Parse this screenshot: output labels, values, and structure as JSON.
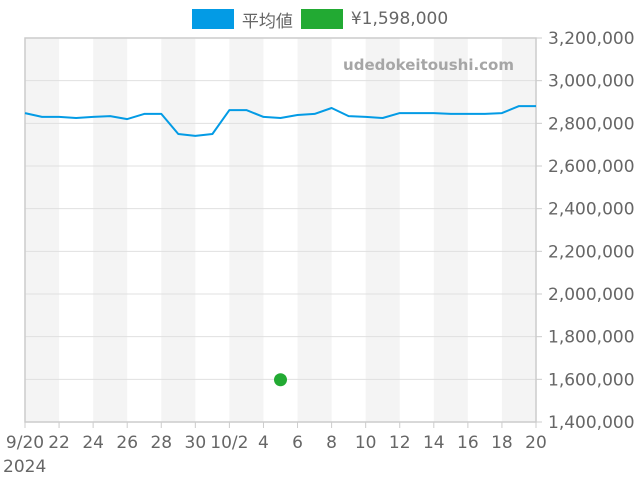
{
  "legend": [
    {
      "label": "平均値",
      "color": "#039be5"
    },
    {
      "label": "¥1,598,000",
      "color": "#22aa33"
    }
  ],
  "watermark": "udedokeitoushi.com",
  "chart_data": {
    "type": "line",
    "title": "",
    "xlabel": "",
    "ylabel": "",
    "ylim": [
      1400000,
      3200000
    ],
    "y_ticks": [
      "3,200,000",
      "3,000,000",
      "2,800,000",
      "2,600,000",
      "2,400,000",
      "2,200,000",
      "2,000,000",
      "1,800,000",
      "1,600,000",
      "1,400,000"
    ],
    "x_ticks": [
      "9/20",
      "22",
      "24",
      "26",
      "28",
      "30",
      "10/2",
      "4",
      "6",
      "8",
      "10",
      "12",
      "14",
      "16",
      "18",
      "20"
    ],
    "x_year_label": "2024",
    "grid": true,
    "legend_position": "top",
    "x": [
      "2024-09-20",
      "2024-09-21",
      "2024-09-22",
      "2024-09-23",
      "2024-09-24",
      "2024-09-25",
      "2024-09-26",
      "2024-09-27",
      "2024-09-28",
      "2024-09-29",
      "2024-09-30",
      "2024-10-01",
      "2024-10-02",
      "2024-10-03",
      "2024-10-04",
      "2024-10-05",
      "2024-10-06",
      "2024-10-07",
      "2024-10-08",
      "2024-10-09",
      "2024-10-10",
      "2024-10-11",
      "2024-10-12",
      "2024-10-13",
      "2024-10-14",
      "2024-10-15",
      "2024-10-16",
      "2024-10-17",
      "2024-10-18",
      "2024-10-19",
      "2024-10-20"
    ],
    "series": [
      {
        "name": "平均値",
        "color": "#039be5",
        "values": [
          2848000,
          2830000,
          2830000,
          2825000,
          2830000,
          2834000,
          2820000,
          2844000,
          2844000,
          2750000,
          2741000,
          2750000,
          2862000,
          2862000,
          2830000,
          2825000,
          2839000,
          2844000,
          2872000,
          2834000,
          2830000,
          2825000,
          2848000,
          2848000,
          2848000,
          2844000,
          2844000,
          2844000,
          2848000,
          2881000,
          2881000
        ]
      },
      {
        "name": "¥1,598,000",
        "color": "#22aa33",
        "points": [
          {
            "x": "2024-10-05",
            "y": 1598000
          }
        ]
      }
    ]
  }
}
